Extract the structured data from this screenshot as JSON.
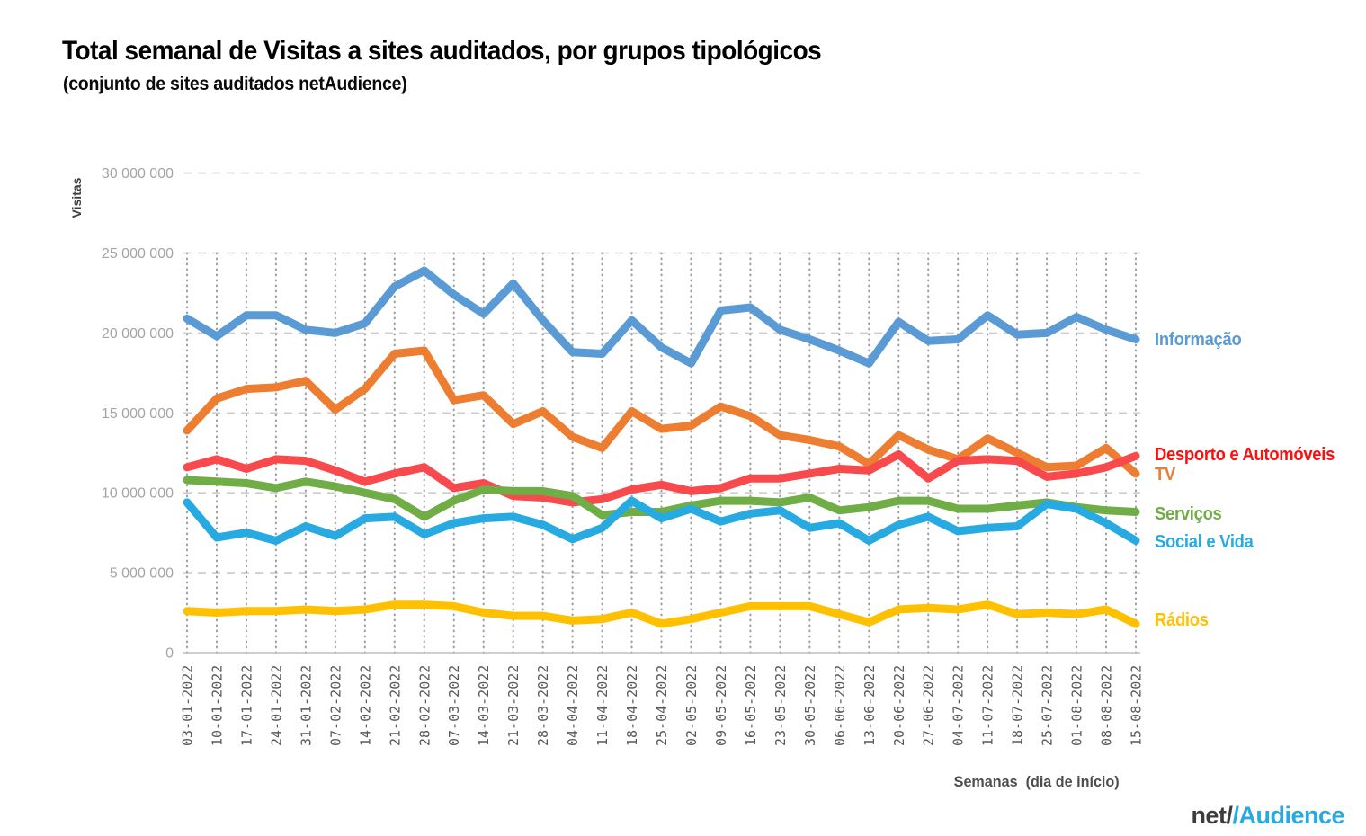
{
  "header": {
    "title": "Total semanal de Visitas a sites auditados, por grupos tipológicos",
    "subtitle": "(conjunto de sites auditados netAudience)"
  },
  "chart_data": {
    "type": "line",
    "title": "Total semanal de Visitas a sites auditados, por grupos tipológicos (conjunto de sites auditados netAudience)",
    "xlabel": "Semanas  (dia de início)",
    "ylabel": "Visitas",
    "unit": "visits, values stored in millions",
    "ylim": [
      0,
      30
    ],
    "grid": {
      "horizontal": "dashed",
      "vertical": "dotted"
    },
    "legend_position": "right, at end of each line",
    "y_ticks": [
      {
        "value": 0,
        "label": "0"
      },
      {
        "value": 5,
        "label": "5 000 000"
      },
      {
        "value": 10,
        "label": "10 000 000"
      },
      {
        "value": 15,
        "label": "15 000 000"
      },
      {
        "value": 20,
        "label": "20 000 000"
      },
      {
        "value": 25,
        "label": "25 000 000"
      },
      {
        "value": 30,
        "label": "30 000 000"
      }
    ],
    "x": [
      "03-01-2022",
      "10-01-2022",
      "17-01-2022",
      "24-01-2022",
      "31-01-2022",
      "07-02-2022",
      "14-02-2022",
      "21-02-2022",
      "28-02-2022",
      "07-03-2022",
      "14-03-2022",
      "21-03-2022",
      "28-03-2022",
      "04-04-2022",
      "11-04-2022",
      "18-04-2022",
      "25-04-2022",
      "02-05-2022",
      "09-05-2022",
      "16-05-2022",
      "23-05-2022",
      "30-05-2022",
      "06-06-2022",
      "13-06-2022",
      "20-06-2022",
      "27-06-2022",
      "04-07-2022",
      "11-07-2022",
      "18-07-2022",
      "25-07-2022",
      "01-08-2022",
      "08-08-2022",
      "15-08-2022"
    ],
    "series": [
      {
        "name": "Informação",
        "color": "#5B9BD5",
        "label_color": "#5B9BD5",
        "label_dy": 0,
        "values": [
          20.9,
          19.8,
          21.1,
          21.1,
          20.2,
          20.0,
          20.6,
          22.9,
          23.9,
          22.4,
          21.2,
          23.1,
          20.8,
          18.8,
          18.7,
          20.8,
          19.1,
          18.1,
          21.4,
          21.6,
          20.2,
          19.6,
          18.9,
          18.1,
          20.7,
          19.5,
          19.6,
          21.1,
          19.9,
          20.0,
          21.0,
          20.2,
          19.6
        ]
      },
      {
        "name": "TV",
        "color": "#ED7D31",
        "label_color": "#ED7D31",
        "label_dy": 1,
        "values": [
          13.9,
          15.9,
          16.5,
          16.6,
          17.0,
          15.2,
          16.5,
          18.7,
          18.9,
          15.8,
          16.1,
          14.3,
          15.1,
          13.5,
          12.8,
          15.1,
          14.0,
          14.2,
          15.4,
          14.8,
          13.6,
          13.3,
          12.9,
          11.8,
          13.6,
          12.7,
          12.1,
          13.4,
          12.5,
          11.6,
          11.7,
          12.8,
          11.2
        ]
      },
      {
        "name": "Desporto e Automóveis",
        "color": "#F8494C",
        "label_color": "#FF0E0E",
        "label_dy": -1,
        "values": [
          11.6,
          12.1,
          11.5,
          12.1,
          12.0,
          11.4,
          10.7,
          11.2,
          11.6,
          10.3,
          10.6,
          9.8,
          9.7,
          9.4,
          9.6,
          10.2,
          10.5,
          10.1,
          10.3,
          10.9,
          10.9,
          11.2,
          11.5,
          11.4,
          12.4,
          10.9,
          12.0,
          12.1,
          12.0,
          11.0,
          11.2,
          11.6,
          12.3
        ]
      },
      {
        "name": "Serviços",
        "color": "#70AD47",
        "label_color": "#70AD47",
        "label_dy": 2,
        "values": [
          10.8,
          10.7,
          10.6,
          10.3,
          10.7,
          10.4,
          10.0,
          9.6,
          8.5,
          9.5,
          10.2,
          10.1,
          10.1,
          9.8,
          8.6,
          8.8,
          8.8,
          9.2,
          9.5,
          9.5,
          9.4,
          9.7,
          8.9,
          9.1,
          9.5,
          9.5,
          9.0,
          9.0,
          9.2,
          9.4,
          9.1,
          8.9,
          8.8
        ]
      },
      {
        "name": "Social e Vida",
        "color": "#27AAE1",
        "label_color": "#27AAE1",
        "label_dy": 1,
        "values": [
          9.4,
          7.2,
          7.5,
          7.0,
          7.9,
          7.3,
          8.4,
          8.5,
          7.4,
          8.1,
          8.4,
          8.5,
          8.0,
          7.1,
          7.8,
          9.5,
          8.4,
          9.0,
          8.2,
          8.7,
          8.9,
          7.8,
          8.1,
          7.0,
          8.0,
          8.5,
          7.6,
          7.8,
          7.9,
          9.3,
          9.0,
          8.1,
          7.0
        ]
      },
      {
        "name": "Rádios",
        "color": "#FFC000",
        "label_color": "#FFC000",
        "label_dy": -4,
        "values": [
          2.6,
          2.5,
          2.6,
          2.6,
          2.7,
          2.6,
          2.7,
          3.0,
          3.0,
          2.9,
          2.5,
          2.3,
          2.3,
          2.0,
          2.1,
          2.5,
          1.8,
          2.1,
          2.5,
          2.9,
          2.9,
          2.9,
          2.4,
          1.9,
          2.7,
          2.8,
          2.7,
          3.0,
          2.4,
          2.5,
          2.4,
          2.7,
          1.8
        ]
      }
    ]
  },
  "footer": {
    "logo": {
      "net": "net",
      "slash_dark": "/",
      "slash_blue": "/",
      "audience": "Audience"
    }
  }
}
